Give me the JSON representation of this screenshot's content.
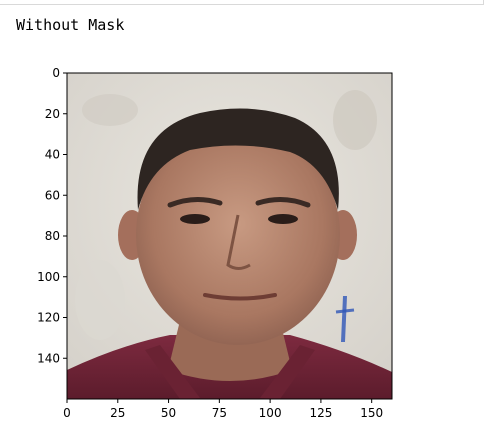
{
  "output": {
    "text": "Without Mask"
  },
  "chart_data": {
    "type": "image",
    "title": "",
    "xlabel": "",
    "ylabel": "",
    "xlim": [
      0,
      160
    ],
    "ylim": [
      160,
      0
    ],
    "image_description": "",
    "x_ticks": [
      0,
      25,
      50,
      75,
      100,
      125,
      150
    ],
    "y_ticks": [
      0,
      20,
      40,
      60,
      80,
      100,
      120,
      140
    ],
    "x_tick_labels": [
      "0",
      "25",
      "50",
      "75",
      "100",
      "125",
      "150"
    ],
    "y_tick_labels": [
      "0",
      "20",
      "40",
      "60",
      "80",
      "100",
      "120",
      "140"
    ]
  }
}
